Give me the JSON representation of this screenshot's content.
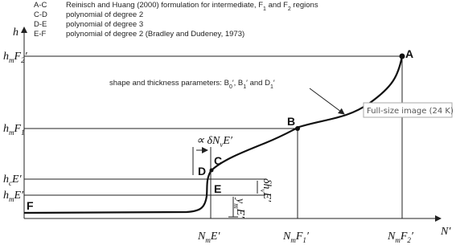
{
  "legend": [
    {
      "code": "A-C",
      "text": [
        {
          "t": "Reinisch and Huang (2000) formulation for intermediate, "
        },
        {
          "t": "F"
        },
        {
          "t": "1",
          "sub": true
        },
        {
          "t": " and "
        },
        {
          "t": "F"
        },
        {
          "t": "2",
          "sub": true
        },
        {
          "t": " regions"
        }
      ]
    },
    {
      "code": "C-D",
      "text": [
        {
          "t": "polynomial of degree 2"
        }
      ]
    },
    {
      "code": "D-E",
      "text": [
        {
          "t": "polynomial of degree 3"
        }
      ]
    },
    {
      "code": "E-F",
      "text": [
        {
          "t": "polynomial of degree 2 (Bradley and Dudeney, 1973)"
        }
      ]
    }
  ],
  "axes": {
    "y": "h",
    "x": "N′"
  },
  "y_labels": [
    [
      {
        "t": "h"
      },
      {
        "t": "m",
        "sub": true
      },
      {
        "t": "F"
      },
      {
        "t": "2",
        "sub": true
      },
      {
        "t": "′"
      }
    ],
    [
      {
        "t": "h"
      },
      {
        "t": "m",
        "sub": true
      },
      {
        "t": "F"
      },
      {
        "t": "1",
        "sub": true
      }
    ],
    [
      {
        "t": "h"
      },
      {
        "t": "c",
        "sub": true
      },
      {
        "t": "E′"
      }
    ],
    [
      {
        "t": "h"
      },
      {
        "t": "m",
        "sub": true
      },
      {
        "t": "E′"
      }
    ]
  ],
  "x_labels": [
    [
      {
        "t": "N"
      },
      {
        "t": "m",
        "sub": true
      },
      {
        "t": "E′"
      }
    ],
    [
      {
        "t": "N"
      },
      {
        "t": "m",
        "sub": true
      },
      {
        "t": "F"
      },
      {
        "t": "1",
        "sub": true
      },
      {
        "t": "′"
      }
    ],
    [
      {
        "t": "N"
      },
      {
        "t": "m",
        "sub": true
      },
      {
        "t": "F"
      },
      {
        "t": "2",
        "sub": true
      },
      {
        "t": "′"
      }
    ]
  ],
  "points": [
    "A",
    "B",
    "C",
    "D",
    "E",
    "F"
  ],
  "annotations": {
    "shape": [
      {
        "t": "shape and thickness parameters: "
      },
      {
        "t": "B"
      },
      {
        "t": "0",
        "sub": true
      },
      {
        "t": "′, "
      },
      {
        "t": "B"
      },
      {
        "t": "1",
        "sub": true
      },
      {
        "t": "′ and "
      },
      {
        "t": "D"
      },
      {
        "t": "1",
        "sub": true
      },
      {
        "t": "′"
      }
    ],
    "dN": [
      {
        "t": "∝ δN"
      },
      {
        "t": "v",
        "sub": true
      },
      {
        "t": "E′"
      }
    ],
    "dh": [
      {
        "t": "δh"
      },
      {
        "t": "v",
        "sub": true
      },
      {
        "t": "E′"
      }
    ],
    "ym": [
      {
        "t": "y"
      },
      {
        "t": "m",
        "sub": true
      },
      {
        "t": "E′"
      }
    ]
  },
  "tooltip": "Full-size image (24 K)"
}
